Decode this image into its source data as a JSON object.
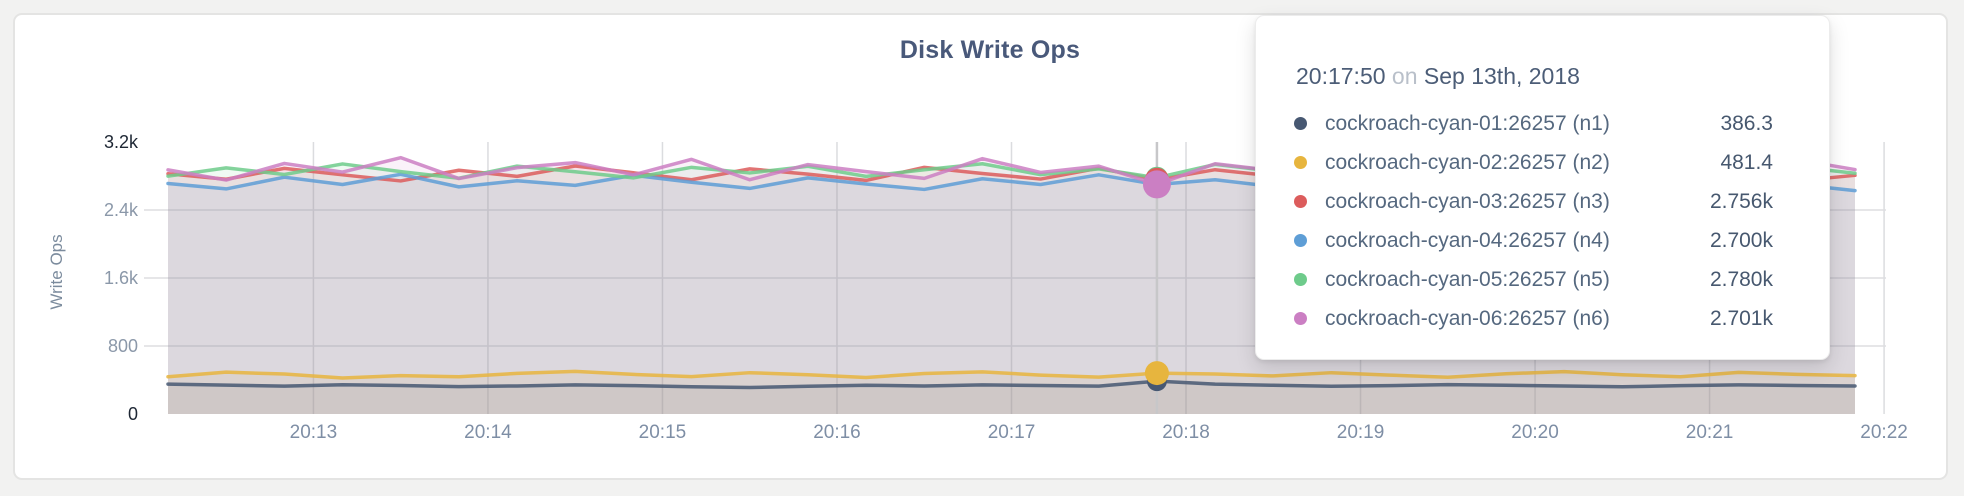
{
  "page": {
    "background": "#f2f2f1"
  },
  "card": {
    "background": "#ffffff",
    "border_color": "#e4e4e3"
  },
  "chart": {
    "title": "Disk Write Ops",
    "y_axis_label": "Write Ops"
  },
  "tooltip": {
    "time": "20:17:50",
    "connector": "on",
    "date": "Sep 13th, 2018",
    "rows": [
      {
        "label": "cockroach-cyan-01:26257 (n1)",
        "value": "386.3",
        "color": "#475872"
      },
      {
        "label": "cockroach-cyan-02:26257 (n2)",
        "value": "481.4",
        "color": "#e7b53e"
      },
      {
        "label": "cockroach-cyan-03:26257 (n3)",
        "value": "2.756k",
        "color": "#dc5c5c"
      },
      {
        "label": "cockroach-cyan-04:26257 (n4)",
        "value": "2.700k",
        "color": "#5e9ed6"
      },
      {
        "label": "cockroach-cyan-05:26257 (n5)",
        "value": "2.780k",
        "color": "#6ecb8b"
      },
      {
        "label": "cockroach-cyan-06:26257 (n6)",
        "value": "2.701k",
        "color": "#cb7fc3"
      }
    ]
  },
  "chart_data": {
    "type": "line",
    "title": "Disk Write Ops",
    "ylabel": "Write Ops",
    "ylim": [
      0,
      3200
    ],
    "grid": true,
    "x_start": "20:12:10",
    "x_interval_seconds": 20,
    "x_total_seconds": 580,
    "highlight_index": 17,
    "highlight_time": "20:17:50",
    "y_ticks": [
      {
        "label": "0",
        "v": 0,
        "strong": true
      },
      {
        "label": "800",
        "v": 800,
        "strong": false
      },
      {
        "label": "1.6k",
        "v": 1600,
        "strong": false
      },
      {
        "label": "2.4k",
        "v": 2400,
        "strong": false
      },
      {
        "label": "3.2k",
        "v": 3200,
        "strong": true
      }
    ],
    "x_ticks": [
      {
        "label": "20:13",
        "t": 50
      },
      {
        "label": "20:14",
        "t": 110
      },
      {
        "label": "20:15",
        "t": 170
      },
      {
        "label": "20:16",
        "t": 230
      },
      {
        "label": "20:17",
        "t": 290
      },
      {
        "label": "20:18",
        "t": 350
      },
      {
        "label": "20:19",
        "t": 410
      },
      {
        "label": "20:20",
        "t": 470
      },
      {
        "label": "20:21",
        "t": 530
      },
      {
        "label": "20:22",
        "t": 590
      }
    ],
    "series": [
      {
        "name": "cockroach-cyan-01:26257 (n1)",
        "color": "#475872",
        "values": [
          352,
          340,
          328,
          344,
          336,
          322,
          330,
          342,
          334,
          320,
          312,
          326,
          338,
          330,
          342,
          336,
          328,
          386.3,
          352,
          338,
          326,
          334,
          346,
          338,
          330,
          320,
          334,
          342,
          336,
          330
        ]
      },
      {
        "name": "cockroach-cyan-02:26257 (n2)",
        "color": "#e7b53e",
        "values": [
          438,
          492,
          470,
          424,
          452,
          438,
          478,
          502,
          466,
          440,
          486,
          462,
          430,
          476,
          496,
          458,
          434,
          481.4,
          470,
          448,
          486,
          458,
          432,
          474,
          498,
          462,
          438,
          490,
          466,
          452
        ]
      },
      {
        "name": "cockroach-cyan-03:26257 (n3)",
        "color": "#dc5c5c",
        "values": [
          2826,
          2762,
          2890,
          2814,
          2742,
          2868,
          2796,
          2918,
          2838,
          2756,
          2884,
          2822,
          2748,
          2902,
          2830,
          2764,
          2892,
          2756,
          2874,
          2800,
          2742,
          2888,
          2818,
          2754,
          2896,
          2826,
          2760,
          2890,
          2742,
          2808
        ]
      },
      {
        "name": "cockroach-cyan-04:26257 (n4)",
        "color": "#5e9ed6",
        "values": [
          2712,
          2648,
          2786,
          2700,
          2820,
          2672,
          2744,
          2690,
          2808,
          2726,
          2654,
          2778,
          2706,
          2642,
          2768,
          2700,
          2814,
          2700,
          2756,
          2676,
          2742,
          2798,
          2660,
          2728,
          2776,
          2698,
          2648,
          2760,
          2702,
          2628
        ]
      },
      {
        "name": "cockroach-cyan-05:26257 (n5)",
        "color": "#6ecb8b",
        "values": [
          2798,
          2896,
          2818,
          2942,
          2852,
          2774,
          2916,
          2850,
          2778,
          2902,
          2836,
          2914,
          2796,
          2874,
          2944,
          2816,
          2884,
          2780,
          2936,
          2858,
          2792,
          2918,
          2846,
          2776,
          2898,
          2828,
          2946,
          2866,
          2908,
          2832
        ]
      },
      {
        "name": "cockroach-cyan-06:26257 (n6)",
        "color": "#cb7fc3",
        "values": [
          2872,
          2752,
          2948,
          2846,
          3016,
          2770,
          2898,
          2958,
          2814,
          2996,
          2756,
          2934,
          2852,
          2772,
          3004,
          2842,
          2916,
          2701,
          2944,
          2864,
          2784,
          2952,
          2874,
          3012,
          2836,
          2758,
          2942,
          2856,
          2992,
          2876
        ]
      }
    ]
  }
}
